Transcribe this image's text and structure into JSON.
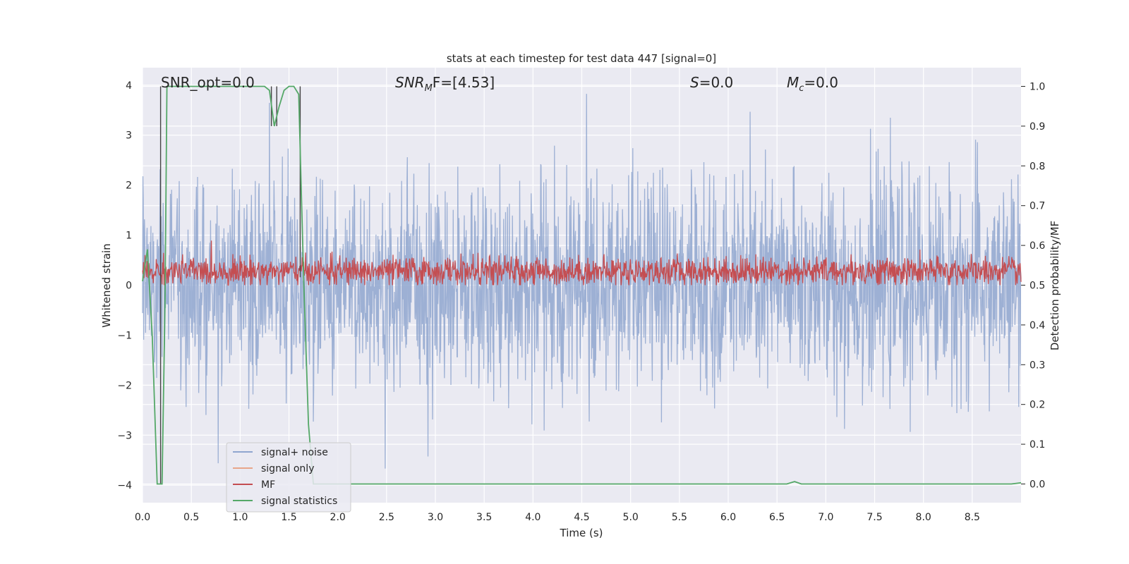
{
  "chart_data": {
    "type": "line",
    "title": "stats at each timestep for test data 447 [signal=0]",
    "xlabel": "Time (s)",
    "ylabel_left": "Whitened strain",
    "ylabel_right": "Detection probability/MF",
    "xlim": [
      0.0,
      9.0
    ],
    "ylim_left": [
      -4.35,
      4.35
    ],
    "ylim_right": [
      -0.047,
      1.047
    ],
    "x_ticks": [
      0.0,
      0.5,
      1.0,
      1.5,
      2.0,
      2.5,
      3.0,
      3.5,
      4.0,
      4.5,
      5.0,
      5.5,
      6.0,
      6.5,
      7.0,
      7.5,
      8.0,
      8.5
    ],
    "x_tick_labels": [
      "0.0",
      "0.5",
      "1.0",
      "1.5",
      "2.0",
      "2.5",
      "3.0",
      "3.5",
      "4.0",
      "4.5",
      "5.0",
      "5.5",
      "6.0",
      "6.5",
      "7.0",
      "7.5",
      "8.0",
      "8.5"
    ],
    "y_left_ticks": [
      -4,
      -3,
      -2,
      -1,
      0,
      1,
      2,
      3,
      4
    ],
    "y_left_tick_labels": [
      "−4",
      "−3",
      "−2",
      "−1",
      "0",
      "1",
      "2",
      "3",
      "4"
    ],
    "y_right_ticks": [
      0.0,
      0.1,
      0.2,
      0.3,
      0.4,
      0.5,
      0.6,
      0.7,
      0.8,
      0.9,
      1.0
    ],
    "y_right_tick_labels": [
      "0.0",
      "0.1",
      "0.2",
      "0.3",
      "0.4",
      "0.5",
      "0.6",
      "0.7",
      "0.8",
      "0.9",
      "1.0"
    ],
    "grid": true,
    "legend_position": "lower-left",
    "annotations": {
      "snr_opt": "SNR_opt=0.0",
      "snr_mf_prefix": "SNR",
      "snr_mf_sub": "M",
      "snr_mf_suffix": "F=[4.53]",
      "s_label": "S",
      "s_value": "=0.0",
      "mc_label": "M",
      "mc_sub": "c",
      "mc_value": "=0.0"
    },
    "series": [
      {
        "name": "signal+ noise",
        "color": "#8fa6cf",
        "axis": "left",
        "kind": "noise",
        "duration_s": 9.0,
        "approx_samples": 2300,
        "spread": 1.05,
        "max_abs": 4.0
      },
      {
        "name": "signal only",
        "color": "#e8a58a",
        "axis": "left",
        "kind": "flat",
        "values": []
      },
      {
        "name": "MF",
        "color": "#c44e52",
        "axis": "right",
        "kind": "noise",
        "mean": 0.535,
        "spread": 0.018,
        "max": 0.62,
        "min": 0.5
      },
      {
        "name": "signal statistics",
        "color": "#55a868",
        "axis": "right",
        "kind": "line",
        "x": [
          0.0,
          0.05,
          0.1,
          0.15,
          0.2,
          0.23,
          0.25,
          0.3,
          0.5,
          1.0,
          1.25,
          1.3,
          1.35,
          1.4,
          1.45,
          1.5,
          1.55,
          1.6,
          1.65,
          1.7,
          1.75,
          1.8,
          2.0,
          3.0,
          4.0,
          5.0,
          6.0,
          6.6,
          6.68,
          6.75,
          7.0,
          8.0,
          8.9,
          9.0
        ],
        "y": [
          0.51,
          0.59,
          0.37,
          0.0,
          0.0,
          0.45,
          1.0,
          1.0,
          1.0,
          1.0,
          1.0,
          0.99,
          0.9,
          0.95,
          0.99,
          1.0,
          1.0,
          0.98,
          0.52,
          0.15,
          0.0,
          0.0,
          0.0,
          0.0,
          0.0,
          0.0,
          0.0,
          0.0,
          0.006,
          0.0,
          0.0,
          0.0,
          0.0,
          0.003
        ]
      }
    ],
    "vertical_markers": [
      {
        "x": 0.185,
        "y_low": 0.0,
        "y_high": 1.0
      },
      {
        "x": 1.32,
        "y_low": 0.9,
        "y_high": 1.0
      },
      {
        "x": 1.375,
        "y_low": 0.9,
        "y_high": 1.0
      },
      {
        "x": 1.615,
        "y_low": 0.52,
        "y_high": 1.0
      }
    ]
  }
}
